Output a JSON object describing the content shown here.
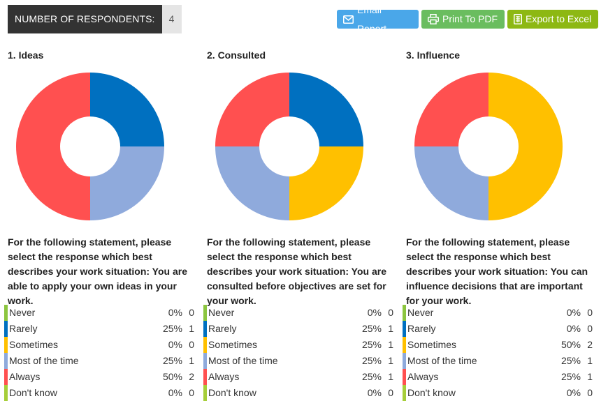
{
  "header": {
    "respondents_label": "NUMBER OF RESPONDENTS:",
    "respondents_count": "4",
    "buttons": {
      "email": "Email Report",
      "pdf": "Print To PDF",
      "excel": "Export to Excel"
    }
  },
  "colors": {
    "Never": "#8cc63f",
    "Rarely": "#0070c0",
    "Sometimes": "#ffc000",
    "Most of the time": "#8faadc",
    "Always": "#ff5050",
    "Don't know": "#a6ce39"
  },
  "chart_data": [
    {
      "type": "pie",
      "title": "1. Ideas",
      "question": "For the following statement, please select the response which best describes your work situation: You are able to apply your own ideas in your work.",
      "categories": [
        "Never",
        "Rarely",
        "Sometimes",
        "Most of the time",
        "Always",
        "Don't know"
      ],
      "percents": [
        "0%",
        "25%",
        "0%",
        "25%",
        "50%",
        "0%"
      ],
      "values": [
        0,
        1,
        0,
        1,
        2,
        0
      ]
    },
    {
      "type": "pie",
      "title": "2. Consulted",
      "question": "For the following statement, please select the response which best describes your work situation: You are consulted before objectives are set for your work.",
      "categories": [
        "Never",
        "Rarely",
        "Sometimes",
        "Most of the time",
        "Always",
        "Don't know"
      ],
      "percents": [
        "0%",
        "25%",
        "25%",
        "25%",
        "25%",
        "0%"
      ],
      "values": [
        0,
        1,
        1,
        1,
        1,
        0
      ]
    },
    {
      "type": "pie",
      "title": "3. Influence",
      "question": "For the following statement, please select the response which best describes your work situation: You can influence decisions that are important for your work.",
      "categories": [
        "Never",
        "Rarely",
        "Sometimes",
        "Most of the time",
        "Always",
        "Don't know"
      ],
      "percents": [
        "0%",
        "0%",
        "50%",
        "25%",
        "25%",
        "0%"
      ],
      "values": [
        0,
        0,
        2,
        1,
        1,
        0
      ]
    }
  ]
}
